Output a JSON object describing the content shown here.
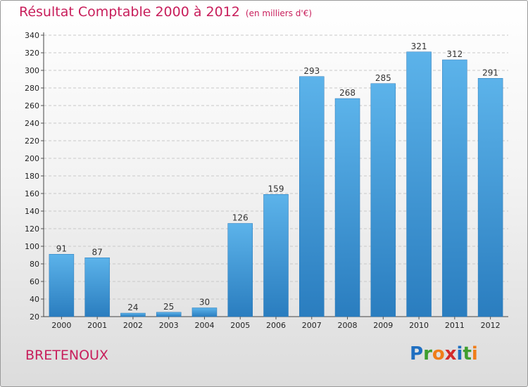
{
  "header": {
    "title": "Résultat Comptable 2000 à 2012",
    "subtitle": "(en milliers d'€)"
  },
  "footer": {
    "commune": "BRETENOUX",
    "logo_letters": [
      "P",
      "r",
      "o",
      "x",
      "i",
      "t",
      "i"
    ],
    "logo_colors": [
      "#1f6fc1",
      "#3f9e2f",
      "#f07d19",
      "#d42b2b",
      "#1f6fc1",
      "#3f9e2f",
      "#f07d19"
    ]
  },
  "colors": {
    "bar_top": "#5cb3ea",
    "bar_bottom": "#2a7dbf",
    "title": "#c81e5b"
  },
  "chart_data": {
    "type": "bar",
    "title": "Résultat Comptable 2000 à 2012",
    "ylabel": "en milliers d'€",
    "categories": [
      "2000",
      "2001",
      "2002",
      "2003",
      "2004",
      "2005",
      "2006",
      "2007",
      "2008",
      "2009",
      "2010",
      "2011",
      "2012"
    ],
    "values": [
      91,
      87,
      24,
      25,
      30,
      126,
      159,
      293,
      268,
      285,
      321,
      312,
      291
    ],
    "ylim": [
      20,
      340
    ],
    "yticks": [
      20,
      40,
      60,
      80,
      100,
      120,
      140,
      160,
      180,
      200,
      220,
      240,
      260,
      280,
      300,
      320,
      340
    ],
    "grid": true
  }
}
